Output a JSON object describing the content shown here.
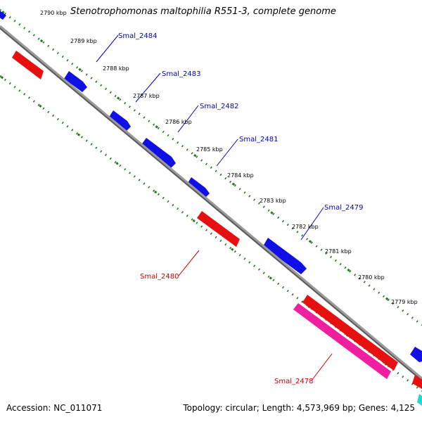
{
  "title": "Stenotrophomonas maltophilia R551-3, complete genome",
  "footer": {
    "accession": "Accession: NC_011071",
    "summary": "Topology: circular; Length: 4,573,969 bp; Genes: 4,125"
  },
  "colors": {
    "forward_gene": "#1010e6",
    "reverse_gene": "#e61010",
    "rna_gene": "#ef1f9f",
    "backbone": "#8a8a8a",
    "tick": "#1f7a1f",
    "forward_label": "#0000cc",
    "reverse_label": "#cc0000"
  },
  "scale": {
    "unit": "kbp",
    "labels": [
      {
        "kbp": 2790,
        "text": "2790 kbp"
      },
      {
        "kbp": 2789,
        "text": "2789 kbp"
      },
      {
        "kbp": 2788,
        "text": "2788 kbp"
      },
      {
        "kbp": 2787,
        "text": "2787 kbp"
      },
      {
        "kbp": 2786,
        "text": "2786 kbp"
      },
      {
        "kbp": 2785,
        "text": "2785 kbp"
      },
      {
        "kbp": 2784,
        "text": "2784 kbp"
      },
      {
        "kbp": 2783,
        "text": "2783 kbp"
      },
      {
        "kbp": 2782,
        "text": "2782 kbp"
      },
      {
        "kbp": 2781,
        "text": "2781 kbp"
      },
      {
        "kbp": 2780,
        "text": "2780 kbp"
      },
      {
        "kbp": 2779,
        "text": "2779 kbp"
      }
    ]
  },
  "genes": [
    {
      "name": "Smal_2484",
      "strand": "forward"
    },
    {
      "name": "Smal_2483",
      "strand": "forward"
    },
    {
      "name": "Smal_2482",
      "strand": "forward"
    },
    {
      "name": "Smal_2481",
      "strand": "forward"
    },
    {
      "name": "Smal_2480",
      "strand": "reverse"
    },
    {
      "name": "Smal_2479",
      "strand": "forward"
    },
    {
      "name": "Smal_2478",
      "strand": "reverse"
    }
  ]
}
